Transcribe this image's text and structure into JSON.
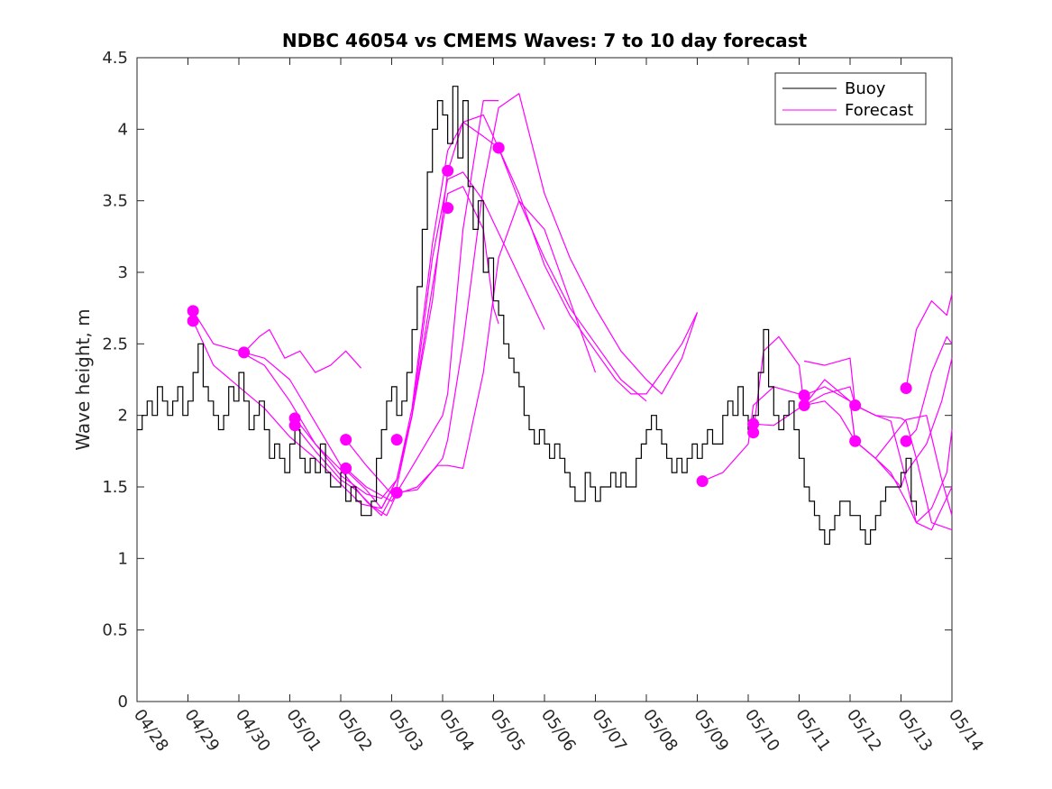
{
  "chart_data": {
    "type": "line",
    "title": "NDBC 46054 vs CMEMS Waves: 7 to 10 day forecast",
    "xlabel": "",
    "ylabel": "Wave height, m",
    "xlim": [
      0,
      16
    ],
    "ylim": [
      0,
      4.5
    ],
    "x_ticks": [
      0,
      1,
      2,
      3,
      4,
      5,
      6,
      7,
      8,
      9,
      10,
      11,
      12,
      13,
      14,
      15,
      16
    ],
    "x_tick_labels": [
      "04/28",
      "04/29",
      "04/30",
      "05/01",
      "05/02",
      "05/03",
      "05/04",
      "05/05",
      "05/06",
      "05/07",
      "05/08",
      "05/09",
      "05/10",
      "05/11",
      "05/12",
      "05/13",
      "05/14"
    ],
    "y_ticks": [
      0,
      0.5,
      1,
      1.5,
      2,
      2.5,
      3,
      3.5,
      4,
      4.5
    ],
    "y_tick_labels": [
      "0",
      "0.5",
      "1",
      "1.5",
      "2",
      "2.5",
      "3",
      "3.5",
      "4",
      "4.5"
    ],
    "grid": false,
    "legend": {
      "position": "top-right",
      "entries": [
        "Buoy",
        "Forecast"
      ]
    },
    "colors": {
      "buoy": "#000000",
      "forecast": "#ff00ff"
    },
    "buoy": {
      "name": "Buoy",
      "x": [
        0,
        0.1,
        0.2,
        0.3,
        0.4,
        0.5,
        0.6,
        0.7,
        0.8,
        0.9,
        1.0,
        1.1,
        1.2,
        1.3,
        1.4,
        1.5,
        1.6,
        1.7,
        1.8,
        1.9,
        2.0,
        2.1,
        2.2,
        2.3,
        2.4,
        2.5,
        2.6,
        2.7,
        2.8,
        2.9,
        3.0,
        3.1,
        3.2,
        3.3,
        3.4,
        3.5,
        3.6,
        3.7,
        3.8,
        3.9,
        4.0,
        4.1,
        4.2,
        4.3,
        4.4,
        4.5,
        4.6,
        4.7,
        4.8,
        4.9,
        5.0,
        5.1,
        5.2,
        5.3,
        5.4,
        5.5,
        5.6,
        5.7,
        5.8,
        5.9,
        6.0,
        6.1,
        6.2,
        6.3,
        6.4,
        6.5,
        6.6,
        6.7,
        6.8,
        6.9,
        7.0,
        7.1,
        7.2,
        7.3,
        7.4,
        7.5,
        7.6,
        7.7,
        7.8,
        7.9,
        8.0,
        8.1,
        8.2,
        8.3,
        8.4,
        8.5,
        8.6,
        8.7,
        8.8,
        8.9,
        9.0,
        9.1,
        9.2,
        9.3,
        9.4,
        9.5,
        9.6,
        9.7,
        9.8,
        9.9,
        10.0,
        10.1,
        10.2,
        10.3,
        10.4,
        10.5,
        10.6,
        10.7,
        10.8,
        10.9,
        11.0,
        11.1,
        11.2,
        11.3,
        11.4,
        11.5,
        11.6,
        11.7,
        11.8,
        11.9,
        12.0,
        12.1,
        12.2,
        12.3,
        12.4,
        12.5,
        12.6,
        12.7,
        12.8,
        12.9,
        13.0,
        13.1,
        13.2,
        13.3,
        13.4,
        13.5,
        13.6,
        13.7,
        13.8,
        13.9,
        14.0,
        14.1,
        14.2,
        14.3,
        14.4,
        14.5,
        14.6,
        14.7,
        14.8,
        14.9,
        15.0,
        15.1,
        15.2,
        15.3
      ],
      "y": [
        1.9,
        2.0,
        2.1,
        2.0,
        2.2,
        2.1,
        2.0,
        2.1,
        2.2,
        2.0,
        2.1,
        2.3,
        2.5,
        2.2,
        2.1,
        2.0,
        1.9,
        2.0,
        2.2,
        2.1,
        2.3,
        2.1,
        1.9,
        2.0,
        2.1,
        1.9,
        1.7,
        1.8,
        1.7,
        1.6,
        1.8,
        1.9,
        1.7,
        1.6,
        1.7,
        1.6,
        1.8,
        1.6,
        1.5,
        1.5,
        1.6,
        1.4,
        1.5,
        1.4,
        1.3,
        1.3,
        1.4,
        1.7,
        1.9,
        2.1,
        2.2,
        2.0,
        2.1,
        2.3,
        2.6,
        2.9,
        3.3,
        3.7,
        4.0,
        4.2,
        4.1,
        3.9,
        4.3,
        3.8,
        4.2,
        3.6,
        3.3,
        3.5,
        3.0,
        3.1,
        2.8,
        2.7,
        2.5,
        2.4,
        2.3,
        2.2,
        2.0,
        1.9,
        1.8,
        1.9,
        1.8,
        1.7,
        1.8,
        1.7,
        1.6,
        1.5,
        1.4,
        1.4,
        1.6,
        1.5,
        1.4,
        1.5,
        1.5,
        1.6,
        1.5,
        1.6,
        1.5,
        1.5,
        1.7,
        1.8,
        1.9,
        2.0,
        1.9,
        1.8,
        1.7,
        1.6,
        1.7,
        1.6,
        1.7,
        1.8,
        1.7,
        1.8,
        1.9,
        1.8,
        1.8,
        2.0,
        2.1,
        2.0,
        2.2,
        2.0,
        1.9,
        2.0,
        2.3,
        2.6,
        2.2,
        2.0,
        1.9,
        2.0,
        2.1,
        1.9,
        1.7,
        1.5,
        1.4,
        1.3,
        1.2,
        1.1,
        1.2,
        1.3,
        1.4,
        1.4,
        1.3,
        1.3,
        1.2,
        1.1,
        1.2,
        1.3,
        1.4,
        1.5,
        1.5,
        1.5,
        1.6,
        1.7,
        1.4,
        1.3
      ]
    },
    "forecast_runs": [
      {
        "x": [
          1.1,
          1.5,
          2.0,
          2.5,
          3.0,
          3.5,
          4.0,
          4.4,
          4.8,
          5.1,
          5.4,
          5.8,
          6.1,
          6.4,
          6.8,
          7.0,
          7.1
        ],
        "y": [
          2.66,
          2.35,
          2.2,
          2.05,
          1.85,
          1.7,
          1.52,
          1.38,
          1.35,
          1.55,
          2.0,
          2.9,
          3.55,
          3.6,
          3.3,
          2.75,
          2.64
        ]
      },
      {
        "x": [
          1.1,
          1.5,
          2.0,
          2.5,
          3.0,
          3.5,
          4.0,
          4.5,
          4.8,
          5.1,
          5.4,
          5.8,
          6.1,
          6.4,
          6.8,
          7.2,
          7.6,
          8.0
        ],
        "y": [
          2.73,
          2.5,
          2.45,
          2.35,
          2.1,
          1.8,
          1.58,
          1.45,
          1.42,
          1.55,
          2.0,
          3.1,
          3.65,
          3.7,
          3.5,
          3.2,
          2.9,
          2.6
        ]
      },
      {
        "x": [
          2.1,
          2.5,
          3.0,
          3.5,
          4.0,
          4.5,
          4.8,
          5.1,
          5.4,
          5.8,
          6.1,
          6.4,
          6.8,
          7.1,
          7.5,
          8.0,
          8.5,
          9.0,
          9.5,
          10.0
        ],
        "y": [
          2.44,
          2.4,
          2.25,
          1.95,
          1.65,
          1.48,
          1.35,
          1.55,
          2.05,
          3.2,
          3.85,
          4.05,
          3.95,
          3.87,
          3.5,
          3.1,
          2.75,
          2.5,
          2.25,
          2.1
        ]
      },
      {
        "x": [
          2.1,
          2.4,
          2.6,
          2.9,
          3.2,
          3.5,
          3.8,
          4.1,
          4.4
        ],
        "y": [
          2.44,
          2.55,
          2.6,
          2.4,
          2.45,
          2.3,
          2.35,
          2.45,
          2.33
        ]
      },
      {
        "x": [
          3.1,
          3.5,
          4.0,
          4.5,
          4.8,
          5.1,
          5.4,
          5.8,
          6.1,
          6.4,
          6.8,
          7.1,
          7.5,
          8.0,
          8.5,
          9.0,
          9.4,
          9.7,
          10.0,
          10.3,
          10.7,
          11.0
        ],
        "y": [
          1.98,
          1.8,
          1.62,
          1.4,
          1.3,
          1.5,
          2.0,
          2.8,
          3.7,
          4.05,
          4.1,
          3.87,
          3.55,
          3.05,
          2.7,
          2.45,
          2.25,
          2.15,
          2.15,
          2.3,
          2.5,
          2.72
        ]
      },
      {
        "x": [
          3.1,
          3.5,
          4.0,
          4.3,
          4.6,
          4.9,
          5.1,
          5.5,
          5.9,
          6.1,
          6.4,
          6.8,
          7.1,
          7.5,
          8.0,
          8.5,
          9.0
        ],
        "y": [
          1.93,
          1.75,
          1.55,
          1.48,
          1.37,
          1.3,
          1.45,
          1.5,
          1.65,
          1.65,
          1.63,
          2.3,
          3.1,
          3.5,
          3.3,
          2.8,
          2.3
        ]
      },
      {
        "x": [
          4.1,
          4.5,
          5.0,
          5.1,
          5.5,
          6.0,
          6.1,
          6.4,
          6.8,
          7.1,
          7.5,
          8.0,
          8.5,
          9.0,
          9.5,
          10.0,
          10.3,
          10.7,
          11.0
        ],
        "y": [
          1.83,
          1.65,
          1.45,
          1.46,
          1.48,
          1.7,
          1.83,
          2.5,
          3.6,
          4.15,
          4.25,
          3.55,
          3.1,
          2.75,
          2.45,
          2.25,
          2.15,
          2.4,
          2.72
        ]
      },
      {
        "x": [
          4.1,
          4.5,
          5.0,
          5.1,
          5.5,
          6.0,
          6.1,
          6.4,
          6.8,
          7.1
        ],
        "y": [
          1.63,
          1.5,
          1.4,
          1.46,
          1.7,
          2.0,
          2.15,
          3.3,
          4.2,
          4.2
        ]
      },
      {
        "x": [
          11.1,
          11.5,
          12.0,
          12.1,
          12.5,
          13.0,
          13.1,
          13.5,
          13.8,
          14.1,
          14.5,
          15.0,
          15.1,
          15.5,
          15.8,
          16.0
        ],
        "y": [
          1.54,
          1.6,
          1.8,
          2.07,
          2.2,
          2.15,
          2.07,
          2.1,
          2.0,
          1.82,
          1.7,
          1.5,
          1.6,
          1.8,
          2.1,
          2.4
        ]
      },
      {
        "x": [
          12.1,
          12.5,
          13.0,
          13.1,
          13.5,
          14.0,
          14.1,
          14.5,
          14.8,
          15.1,
          15.3,
          15.6,
          15.9,
          16.0
        ],
        "y": [
          1.94,
          1.93,
          2.05,
          2.14,
          2.2,
          2.1,
          1.82,
          1.7,
          1.6,
          1.4,
          1.25,
          1.35,
          1.6,
          1.9
        ]
      },
      {
        "x": [
          12.1,
          12.3,
          12.6,
          13.0,
          13.1,
          13.5,
          14.0,
          14.1,
          14.5,
          14.8,
          15.1,
          15.3,
          15.6,
          16.0
        ],
        "y": [
          1.88,
          2.45,
          2.55,
          2.35,
          2.07,
          2.15,
          2.2,
          2.07,
          2.0,
          1.96,
          1.55,
          1.25,
          1.2,
          1.5
        ]
      },
      {
        "x": [
          13.1,
          13.5,
          14.0,
          14.1,
          14.5,
          15.1,
          15.5,
          15.8,
          16.0
        ],
        "y": [
          2.07,
          2.25,
          2.1,
          1.82,
          1.7,
          1.97,
          2.0,
          1.55,
          1.3
        ]
      },
      {
        "x": [
          13.1,
          13.5,
          14.0,
          14.1,
          14.5,
          15.0,
          15.1,
          15.3,
          15.6,
          16.0
        ],
        "y": [
          2.38,
          2.35,
          2.4,
          2.07,
          2.0,
          1.98,
          1.96,
          1.7,
          1.25,
          1.2
        ]
      },
      {
        "x": [
          15.1,
          15.3,
          15.6,
          15.9,
          16.0
        ],
        "y": [
          2.19,
          2.6,
          2.8,
          2.7,
          2.85
        ]
      },
      {
        "x": [
          15.1,
          15.3,
          15.6,
          15.9,
          16.0
        ],
        "y": [
          1.82,
          1.9,
          2.3,
          2.55,
          2.5
        ]
      }
    ],
    "forecast_start_markers": {
      "x": [
        1.1,
        1.1,
        2.1,
        3.1,
        3.1,
        4.1,
        4.1,
        5.1,
        5.1,
        6.1,
        6.1,
        7.1,
        7.1,
        11.1,
        12.1,
        12.1,
        13.1,
        13.1,
        14.1,
        14.1,
        15.1,
        15.1
      ],
      "y": [
        2.73,
        2.66,
        2.44,
        1.98,
        1.93,
        1.83,
        1.63,
        1.83,
        1.46,
        3.71,
        3.45,
        3.87,
        3.87,
        1.54,
        1.94,
        1.88,
        2.14,
        2.07,
        2.07,
        1.82,
        2.19,
        1.82
      ]
    }
  }
}
